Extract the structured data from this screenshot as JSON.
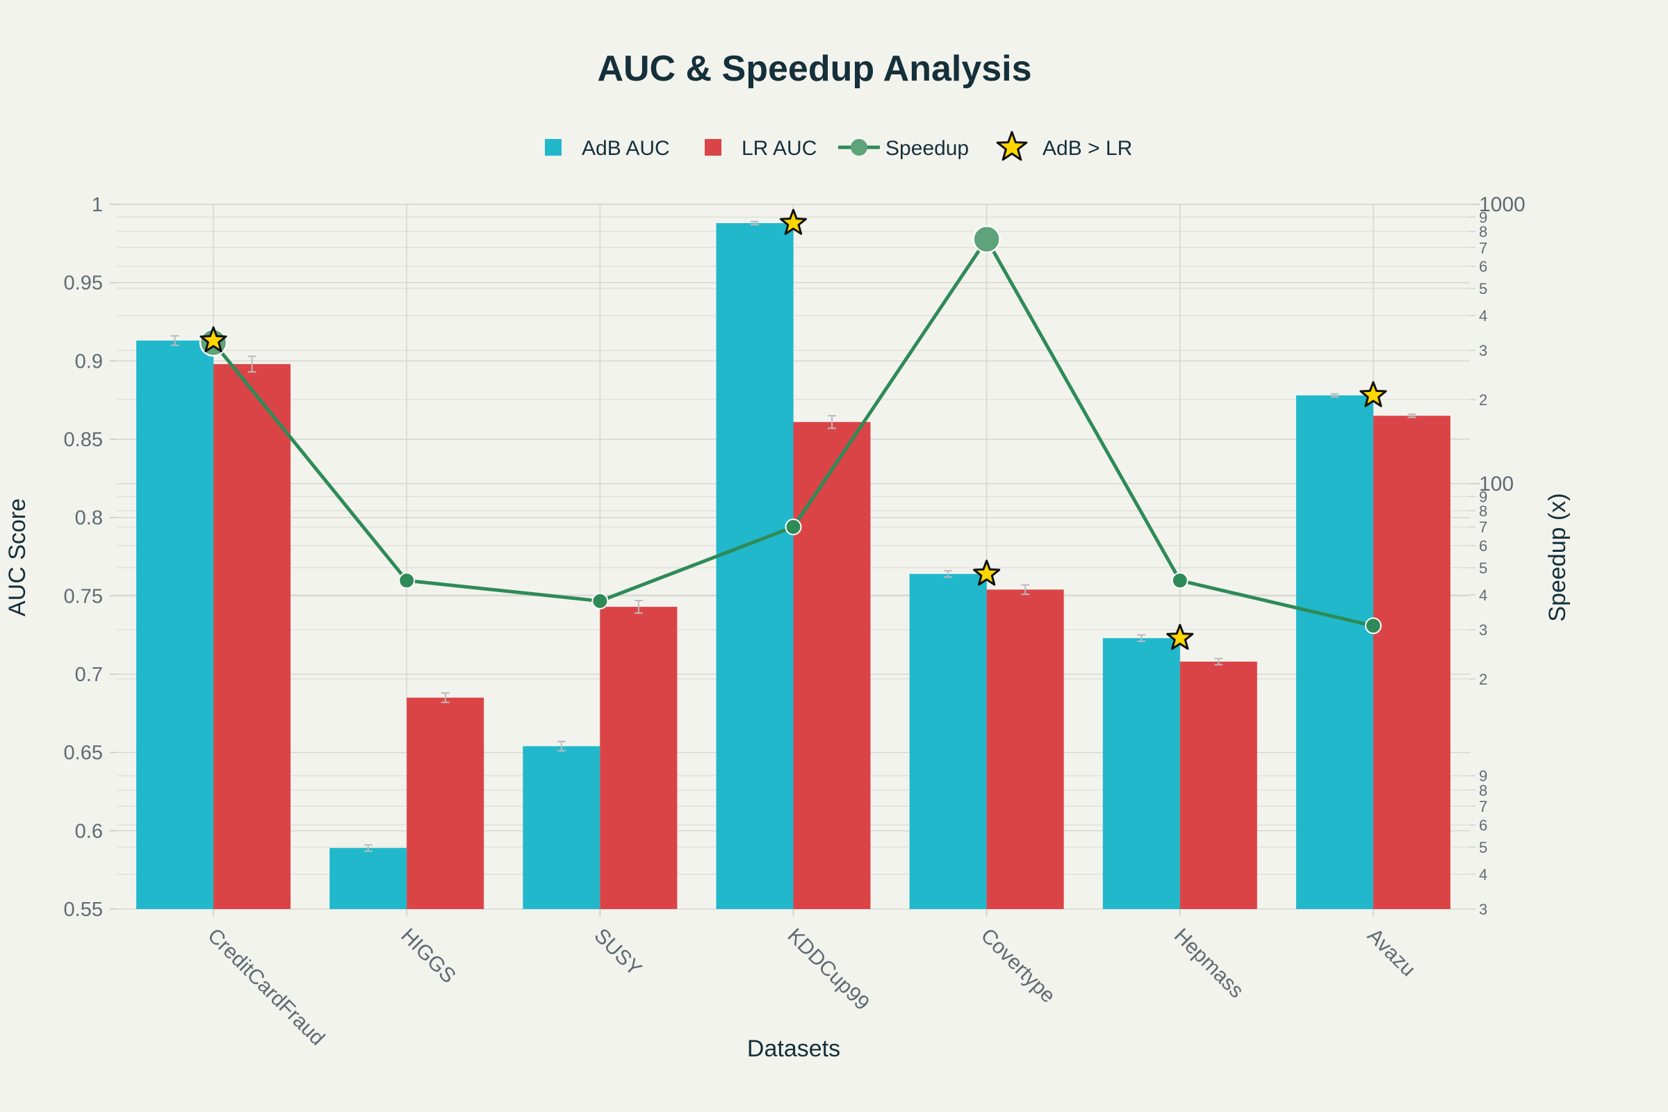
{
  "chart_data": {
    "type": "bar",
    "title": "AUC & Speedup Analysis",
    "xlabel": "Datasets",
    "ylabel": "AUC Score",
    "y2label": "Speedup (x)",
    "categories": [
      "CreditCardFraud",
      "HIGGS",
      "SUSY",
      "KDDCup99",
      "Covertype",
      "Hepmass",
      "Avazu"
    ],
    "ylim": [
      0.55,
      1
    ],
    "y_ticks": [
      0.55,
      0.6,
      0.65,
      0.7,
      0.75,
      0.8,
      0.85,
      0.9,
      0.95,
      1
    ],
    "y_tick_labels": [
      "0.55",
      "0.6",
      "0.65",
      "0.7",
      "0.75",
      "0.8",
      "0.85",
      "0.9",
      "0.95",
      "1"
    ],
    "y2_scale": "log",
    "y2lim": [
      3,
      1000
    ],
    "y2_major_ticks": [
      100,
      1000
    ],
    "y2_major_labels": [
      "100",
      "1000"
    ],
    "y2_minor_ticks": [
      3,
      4,
      5,
      6,
      7,
      8,
      9,
      20,
      30,
      40,
      50,
      60,
      70,
      80,
      90,
      200,
      300,
      400,
      500,
      600,
      700,
      800,
      900
    ],
    "y2_minor_labels": [
      "3",
      "4",
      "5",
      "6",
      "7",
      "8",
      "9",
      "2",
      "3",
      "4",
      "5",
      "6",
      "7",
      "8",
      "9",
      "2",
      "3",
      "4",
      "5",
      "6",
      "7",
      "8",
      "9"
    ],
    "grid": true,
    "legend_position": "top-center",
    "legend": [
      {
        "label": "AdB AUC",
        "kind": "bar",
        "color": "#21b8cc"
      },
      {
        "label": "LR AUC",
        "kind": "bar",
        "color": "#db4447"
      },
      {
        "label": "Speedup",
        "kind": "line",
        "color": "#2e8b57"
      },
      {
        "label": "AdB > LR",
        "kind": "star",
        "color": "#ffd700"
      }
    ],
    "series": [
      {
        "name": "AdB AUC",
        "axis": "left",
        "color": "#21b8cc",
        "values": [
          0.913,
          0.589,
          0.654,
          0.988,
          0.764,
          0.723,
          0.878
        ],
        "errors": [
          0.003,
          0.002,
          0.003,
          0.001,
          0.002,
          0.002,
          0.001
        ]
      },
      {
        "name": "LR AUC",
        "axis": "right_none",
        "color": "#db4447",
        "values": [
          0.898,
          0.685,
          0.743,
          0.861,
          0.754,
          0.708,
          0.865
        ],
        "errors": [
          0.005,
          0.003,
          0.004,
          0.004,
          0.003,
          0.002,
          0.001
        ]
      },
      {
        "name": "Speedup",
        "axis": "right",
        "color": "#2e8b57",
        "values": [
          320,
          45,
          38,
          70,
          750,
          45,
          31
        ],
        "highlight": [
          true,
          false,
          false,
          false,
          true,
          false,
          false
        ]
      }
    ],
    "adb_better": [
      true,
      false,
      false,
      true,
      true,
      true,
      true
    ]
  }
}
